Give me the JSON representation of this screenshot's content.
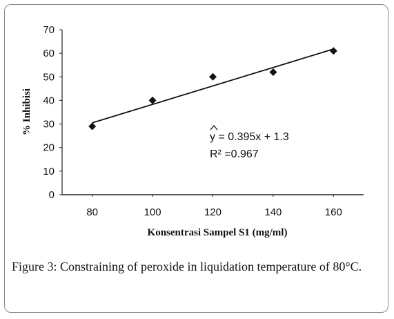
{
  "chart_data": {
    "type": "scatter",
    "x": [
      80,
      100,
      120,
      140,
      160
    ],
    "y": [
      29,
      40,
      50,
      52,
      61
    ],
    "xticks": [
      "80",
      "100",
      "120",
      "140",
      "160"
    ],
    "yticks": [
      "0",
      "10",
      "20",
      "30",
      "40",
      "50",
      "60",
      "70"
    ],
    "xlim": [
      70,
      170
    ],
    "ylim": [
      0,
      70
    ],
    "xlabel": "Konsentrasi Sampel S1 (mg/ml)",
    "ylabel": "% Inhibisi",
    "trendline": {
      "slope": 0.395,
      "intercept": 1.3,
      "x_start": 80,
      "x_end": 160,
      "y_start": 30.5,
      "y_end": 61.8
    },
    "equation": "y = 0.395x + 1.3",
    "r_squared_text": "R² =0.967",
    "grid": false,
    "legend": "none",
    "marker": "diamond",
    "color": "#111111"
  },
  "caption": {
    "label": "Figure 3:",
    "text": " Constraining of peroxide in liquidation temperature of 80°C."
  }
}
